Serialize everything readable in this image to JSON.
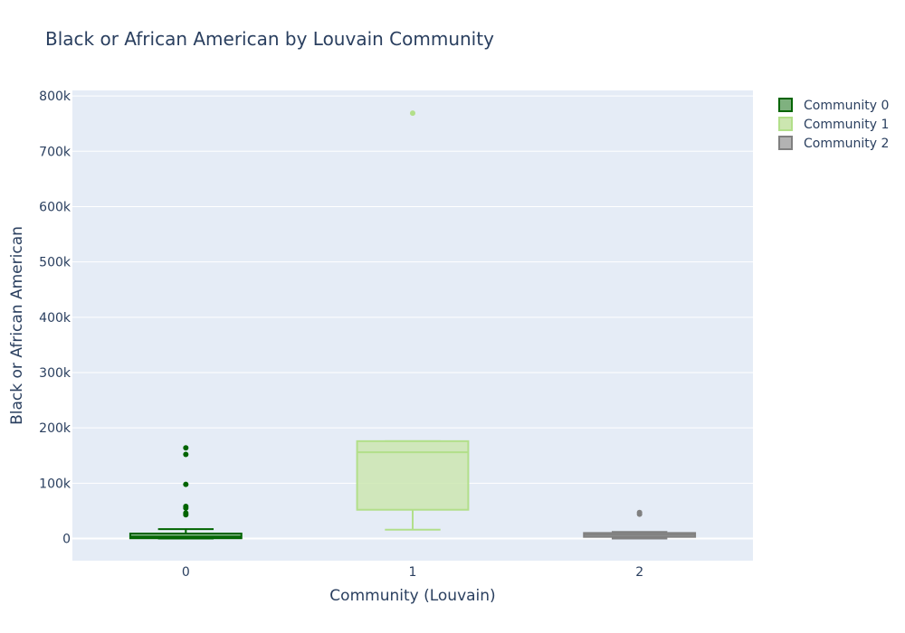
{
  "chart_data": {
    "type": "box",
    "title": "Black or African American by Louvain Community",
    "xlabel": "Community (Louvain)",
    "ylabel": "Black or African American",
    "categories": [
      "0",
      "1",
      "2"
    ],
    "ylim": [
      -40000,
      810000
    ],
    "yticks": [
      0,
      100000,
      200000,
      300000,
      400000,
      500000,
      600000,
      700000,
      800000
    ],
    "ytick_labels": [
      "0",
      "100k",
      "200k",
      "300k",
      "400k",
      "500k",
      "600k",
      "700k",
      "800k"
    ],
    "grid": true,
    "legend_position": "top-right",
    "series": [
      {
        "name": "Community 0",
        "category": "0",
        "color": "#006400",
        "fill": "#7fb17f",
        "lower_fence": 0,
        "q1": 500,
        "median": 3500,
        "q3": 9000,
        "upper_fence": 17000,
        "outliers": [
          164000,
          152000,
          98000,
          58000,
          55000,
          46000,
          43000
        ]
      },
      {
        "name": "Community 1",
        "category": "1",
        "color": "#b2df8a",
        "fill": "#cce6b0",
        "lower_fence": 16000,
        "q1": 52000,
        "median": 156000,
        "q3": 176000,
        "upper_fence": 176000,
        "outliers": [
          769000
        ]
      },
      {
        "name": "Community 2",
        "category": "2",
        "color": "#808080",
        "fill": "#b3b3b3",
        "lower_fence": 0,
        "q1": 3000,
        "median": 6500,
        "q3": 10000,
        "upper_fence": 12000,
        "outliers": [
          47000,
          44000
        ]
      }
    ]
  }
}
